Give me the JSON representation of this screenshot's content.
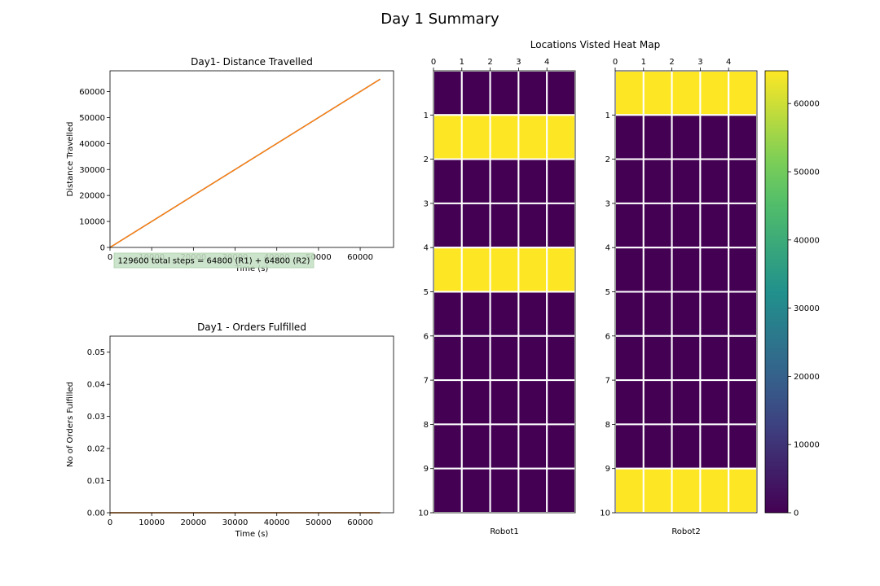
{
  "suptitle": "Day 1 Summary",
  "chart_data": [
    {
      "type": "line",
      "title": "Day1- Distance Travelled",
      "xlabel": "Time (s)",
      "ylabel": "Distance Travelled",
      "xlim": [
        0,
        68000
      ],
      "ylim": [
        0,
        68000
      ],
      "xticks": [
        0,
        10000,
        20000,
        30000,
        40000,
        50000,
        60000
      ],
      "yticks": [
        0,
        10000,
        20000,
        30000,
        40000,
        50000,
        60000
      ],
      "series": [
        {
          "color": "#1f77b4",
          "x": [
            0,
            64800
          ],
          "y": [
            0,
            64800
          ]
        },
        {
          "color": "#ff7f0e",
          "x": [
            0,
            64800
          ],
          "y": [
            0,
            64800
          ]
        }
      ],
      "annotation": "129600 total steps = 64800 (R1) + 64800 (R2)",
      "annotation_color": "#c5e0c4"
    },
    {
      "type": "line",
      "title": "Day1 - Orders Fulfilled",
      "xlabel": "Time (s)",
      "ylabel": "No of Orders Fulfilled",
      "xlim": [
        0,
        68000
      ],
      "ylim": [
        0,
        0.055
      ],
      "xticks": [
        0,
        10000,
        20000,
        30000,
        40000,
        50000,
        60000
      ],
      "yticks": [
        0.0,
        0.01,
        0.02,
        0.03,
        0.04,
        0.05
      ],
      "ytick_labels": [
        "0.00",
        "0.01",
        "0.02",
        "0.03",
        "0.04",
        "0.05"
      ],
      "series": [
        {
          "color": "#1f77b4",
          "x": [
            0,
            64800
          ],
          "y": [
            0,
            0
          ]
        },
        {
          "color": "#ff7f0e",
          "x": [
            0,
            64800
          ],
          "y": [
            0,
            0
          ]
        }
      ]
    },
    {
      "type": "heatmap",
      "title": "Locations Visted Heat Map",
      "colormap": "viridis",
      "vmin": 0,
      "vmax": 64800,
      "colorbar_ticks": [
        0,
        10000,
        20000,
        30000,
        40000,
        50000,
        60000
      ],
      "xticks": [
        0,
        1,
        2,
        3,
        4
      ],
      "yticks": [
        1,
        2,
        3,
        4,
        5,
        6,
        7,
        8,
        9,
        10
      ],
      "panels": [
        {
          "name": "Robot1",
          "values": [
            [
              0,
              0,
              0,
              0,
              0
            ],
            [
              64800,
              64800,
              64800,
              64800,
              64800
            ],
            [
              0,
              0,
              0,
              0,
              0
            ],
            [
              0,
              0,
              0,
              0,
              0
            ],
            [
              64800,
              64800,
              64800,
              64800,
              64800
            ],
            [
              0,
              0,
              0,
              0,
              0
            ],
            [
              0,
              0,
              0,
              0,
              0
            ],
            [
              0,
              0,
              0,
              0,
              0
            ],
            [
              0,
              0,
              0,
              0,
              0
            ],
            [
              0,
              0,
              0,
              0,
              0
            ]
          ]
        },
        {
          "name": "Robot2",
          "values": [
            [
              64800,
              64800,
              64800,
              64800,
              64800
            ],
            [
              0,
              0,
              0,
              0,
              0
            ],
            [
              0,
              0,
              0,
              0,
              0
            ],
            [
              0,
              0,
              0,
              0,
              0
            ],
            [
              0,
              0,
              0,
              0,
              0
            ],
            [
              0,
              0,
              0,
              0,
              0
            ],
            [
              0,
              0,
              0,
              0,
              0
            ],
            [
              0,
              0,
              0,
              0,
              0
            ],
            [
              0,
              0,
              0,
              0,
              0
            ],
            [
              64800,
              64800,
              64800,
              64800,
              64800
            ]
          ]
        }
      ]
    }
  ]
}
